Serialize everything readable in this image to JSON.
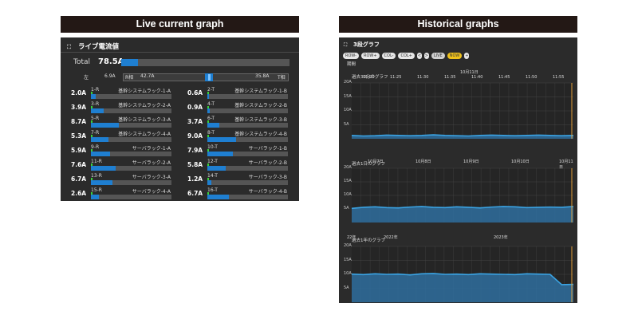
{
  "headers": {
    "live": "Live current graph",
    "historical": "Historical graphs"
  },
  "live": {
    "panel_title": "ライブ電流値",
    "total": {
      "label": "Total",
      "value": "78.5A",
      "fraction": 0.1
    },
    "phase": {
      "left_label": "左",
      "left_value": "6.9A",
      "r_label": "R相",
      "r_value": "42.7A",
      "right_value": "35.8A",
      "t_label": "T相"
    },
    "items": [
      {
        "value": "2.0A",
        "circuit": "1-R",
        "name": "基幹システムラック-1-A",
        "fraction": 0.06
      },
      {
        "value": "0.6A",
        "circuit": "2-T",
        "name": "基幹システムラック-1-B",
        "fraction": 0.02
      },
      {
        "value": "3.9A",
        "circuit": "3-R",
        "name": "基幹システムラック-2-A",
        "fraction": 0.16
      },
      {
        "value": "0.9A",
        "circuit": "4-T",
        "name": "基幹システムラック-2-B",
        "fraction": 0.03
      },
      {
        "value": "8.7A",
        "circuit": "5-R",
        "name": "基幹システムラック-3-A",
        "fraction": 0.35
      },
      {
        "value": "3.7A",
        "circuit": "6-T",
        "name": "基幹システムラック-3-B",
        "fraction": 0.15
      },
      {
        "value": "5.3A",
        "circuit": "7-R",
        "name": "基幹システムラック-4-A",
        "fraction": 0.22
      },
      {
        "value": "9.0A",
        "circuit": "8-T",
        "name": "基幹システムラック-4-B",
        "fraction": 0.36
      },
      {
        "value": "5.9A",
        "circuit": "9-R",
        "name": "サーバラック-1-A",
        "fraction": 0.24
      },
      {
        "value": "7.9A",
        "circuit": "10-T",
        "name": "サーバラック-1-B",
        "fraction": 0.32
      },
      {
        "value": "7.6A",
        "circuit": "11-R",
        "name": "サーバラック-2-A",
        "fraction": 0.31
      },
      {
        "value": "5.8A",
        "circuit": "12-T",
        "name": "サーバラック-2-B",
        "fraction": 0.23
      },
      {
        "value": "6.7A",
        "circuit": "13-R",
        "name": "サーバラック-3-A",
        "fraction": 0.27
      },
      {
        "value": "1.2A",
        "circuit": "14-T",
        "name": "サーバラック-3-B",
        "fraction": 0.05
      },
      {
        "value": "2.6A",
        "circuit": "15-R",
        "name": "サーバラック-4-A",
        "fraction": 0.1
      },
      {
        "value": "6.7A",
        "circuit": "16-T",
        "name": "サーバラック-4-B",
        "fraction": 0.27
      }
    ]
  },
  "historical": {
    "panel_title": "3段グラフ",
    "toolbar": [
      "ROW-",
      "ROW+",
      "COL-",
      "COL+",
      "<",
      ">",
      "LIVE",
      "NOW",
      "+"
    ],
    "toolbar_sub": "期間",
    "colors": {
      "line": "#3aa3e3",
      "fill": "#2f6f9f",
      "marker": "#e3a03a"
    },
    "chart_data": [
      {
        "type": "area",
        "title": "過去30分のグラフ",
        "ylabels": [
          "20A",
          "15A",
          "10A",
          "5A"
        ],
        "ylim": [
          0,
          20
        ],
        "x_top": [
          "11:20",
          "11:25",
          "11:30",
          "11:35",
          "11:40",
          "11:45",
          "11:50",
          "11:55"
        ],
        "x_top_date": "10月11日",
        "values": [
          1.2,
          1.0,
          1.1,
          1.3,
          1.2,
          1.1,
          1.2,
          1.4,
          1.2,
          1.1,
          1.0,
          1.2,
          1.3,
          1.2,
          1.1,
          1.2,
          1.3,
          1.2,
          1.1,
          1.2
        ]
      },
      {
        "type": "area",
        "title": "過去1日のグラフ",
        "ylabels": [
          "20A",
          "15A",
          "10A",
          "5A"
        ],
        "ylim": [
          0,
          20
        ],
        "x_top": [
          "10月7日",
          "10月8日",
          "10月9日",
          "10月10日",
          "10月11日"
        ],
        "values": [
          5.2,
          5.6,
          5.8,
          5.5,
          5.4,
          5.7,
          5.9,
          5.6,
          5.5,
          5.8,
          5.6,
          5.4,
          5.7,
          5.9,
          5.8,
          5.5,
          5.6,
          5.7,
          5.6,
          5.9
        ]
      },
      {
        "type": "area",
        "title": "過去1年のグラフ",
        "ylabels": [
          "20A",
          "15A",
          "10A",
          "5A"
        ],
        "ylim": [
          0,
          20
        ],
        "x_top": [
          "22年",
          "2022年",
          "2023年"
        ],
        "values": [
          10.1,
          9.9,
          10.2,
          10.0,
          10.1,
          9.8,
          10.2,
          10.3,
          10.0,
          10.1,
          9.9,
          10.2,
          10.1,
          10.0,
          9.9,
          10.2,
          10.1,
          10.0,
          6.3,
          6.4
        ]
      }
    ]
  }
}
